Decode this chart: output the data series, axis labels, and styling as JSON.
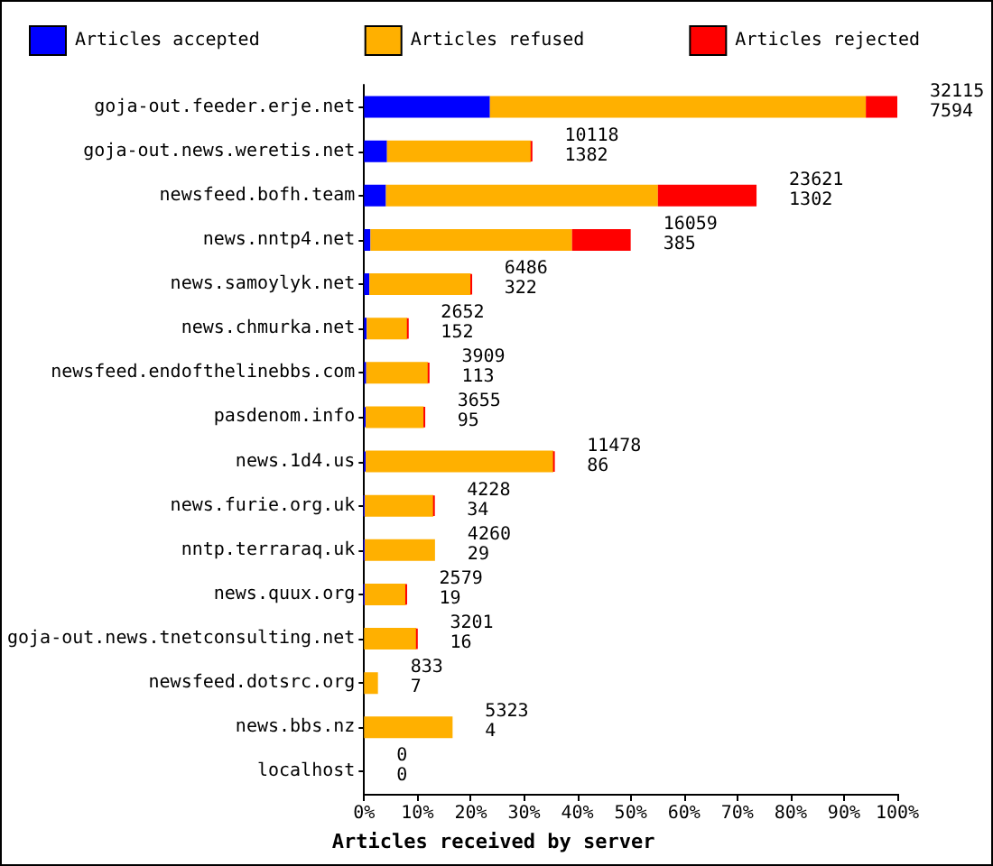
{
  "chart_data": {
    "type": "bar",
    "orientation": "horizontal",
    "stacked": true,
    "categories": [
      "goja-out.feeder.erje.net",
      "goja-out.news.weretis.net",
      "newsfeed.bofh.team",
      "news.nntp4.net",
      "news.samoylyk.net",
      "news.chmurka.net",
      "newsfeed.endofthelinebbs.com",
      "pasdenom.info",
      "news.1d4.us",
      "news.furie.org.uk",
      "nntp.terraraq.uk",
      "news.quux.org",
      "goja-out.news.tnetconsulting.net",
      "newsfeed.dotsrc.org",
      "news.bbs.nz",
      "localhost"
    ],
    "series": [
      {
        "name": "Articles accepted",
        "color": "#0000ff",
        "values": [
          23.6,
          4.3,
          4.1,
          1.2,
          1.0,
          0.5,
          0.4,
          0.3,
          0.3,
          0.1,
          0.1,
          0.1,
          0,
          0,
          0,
          0
        ]
      },
      {
        "name": "Articles refused",
        "color": "#ffb000",
        "values": [
          70.5,
          27.0,
          51.0,
          37.8,
          19.0,
          7.6,
          11.6,
          10.9,
          35.2,
          12.9,
          13.2,
          7.7,
          9.8,
          2.6,
          16.6,
          0
        ]
      },
      {
        "name": "Articles rejected",
        "color": "#ff0000",
        "values": [
          5.9,
          0.2,
          18.5,
          11.0,
          0.2,
          0.2,
          0.2,
          0.2,
          0.2,
          0.2,
          0,
          0.2,
          0.2,
          0,
          0,
          0
        ]
      }
    ],
    "xlabel": "Articles received by server",
    "xlim": [
      0,
      100
    ],
    "xticks": [
      {
        "value": 0,
        "label": "0%"
      },
      {
        "value": 10,
        "label": "10%"
      },
      {
        "value": 20,
        "label": "20%"
      },
      {
        "value": 30,
        "label": "30%"
      },
      {
        "value": 40,
        "label": "40%"
      },
      {
        "value": 50,
        "label": "50%"
      },
      {
        "value": 60,
        "label": "60%"
      },
      {
        "value": 70,
        "label": "70%"
      },
      {
        "value": 80,
        "label": "80%"
      },
      {
        "value": 90,
        "label": "90%"
      },
      {
        "value": 100,
        "label": "100%"
      }
    ],
    "legend": "top",
    "grid": false,
    "annotations": [
      {
        "text": "32115",
        "x": 100,
        "y": "goja-out.feeder.erje.net"
      },
      {
        "text": "7594",
        "x": 100,
        "y": "goja-out.feeder.erje.net"
      },
      {
        "text": "10118",
        "x": 31.5,
        "y": "goja-out.news.weretis.net"
      },
      {
        "text": "1382",
        "x": 31.5,
        "y": "goja-out.news.weretis.net"
      },
      {
        "text": "23621",
        "x": 73.6,
        "y": "newsfeed.bofh.team"
      },
      {
        "text": "1302",
        "x": 73.6,
        "y": "newsfeed.bofh.team"
      },
      {
        "text": "16059",
        "x": 50.0,
        "y": "news.nntp4.net"
      },
      {
        "text": "385",
        "x": 50.0,
        "y": "news.nntp4.net"
      },
      {
        "text": "6486",
        "x": 20.2,
        "y": "news.samoylyk.net"
      },
      {
        "text": "322",
        "x": 20.2,
        "y": "news.samoylyk.net"
      },
      {
        "text": "2652",
        "x": 8.3,
        "y": "news.chmurka.net"
      },
      {
        "text": "152",
        "x": 8.3,
        "y": "news.chmurka.net"
      },
      {
        "text": "3909",
        "x": 12.2,
        "y": "newsfeed.endofthelinebbs.com"
      },
      {
        "text": "113",
        "x": 12.2,
        "y": "newsfeed.endofthelinebbs.com"
      },
      {
        "text": "3655",
        "x": 11.4,
        "y": "pasdenom.info"
      },
      {
        "text": "95",
        "x": 11.4,
        "y": "pasdenom.info"
      },
      {
        "text": "11478",
        "x": 35.7,
        "y": "news.1d4.us"
      },
      {
        "text": "86",
        "x": 35.7,
        "y": "news.1d4.us"
      },
      {
        "text": "4228",
        "x": 13.2,
        "y": "news.furie.org.uk"
      },
      {
        "text": "34",
        "x": 13.2,
        "y": "news.furie.org.uk"
      },
      {
        "text": "4260",
        "x": 13.3,
        "y": "nntp.terraraq.uk"
      },
      {
        "text": "29",
        "x": 13.3,
        "y": "nntp.terraraq.uk"
      },
      {
        "text": "2579",
        "x": 8.0,
        "y": "news.quux.org"
      },
      {
        "text": "19",
        "x": 8.0,
        "y": "news.quux.org"
      },
      {
        "text": "3201",
        "x": 10.0,
        "y": "goja-out.news.tnetconsulting.net"
      },
      {
        "text": "16",
        "x": 10.0,
        "y": "goja-out.news.tnetconsulting.net"
      },
      {
        "text": "833",
        "x": 2.6,
        "y": "newsfeed.dotsrc.org"
      },
      {
        "text": "7",
        "x": 2.6,
        "y": "newsfeed.dotsrc.org"
      },
      {
        "text": "5323",
        "x": 16.6,
        "y": "news.bbs.nz"
      },
      {
        "text": "4",
        "x": 16.6,
        "y": "news.bbs.nz"
      },
      {
        "text": "0",
        "x": 0,
        "y": "localhost"
      },
      {
        "text": "0",
        "x": 0,
        "y": "localhost"
      }
    ]
  }
}
